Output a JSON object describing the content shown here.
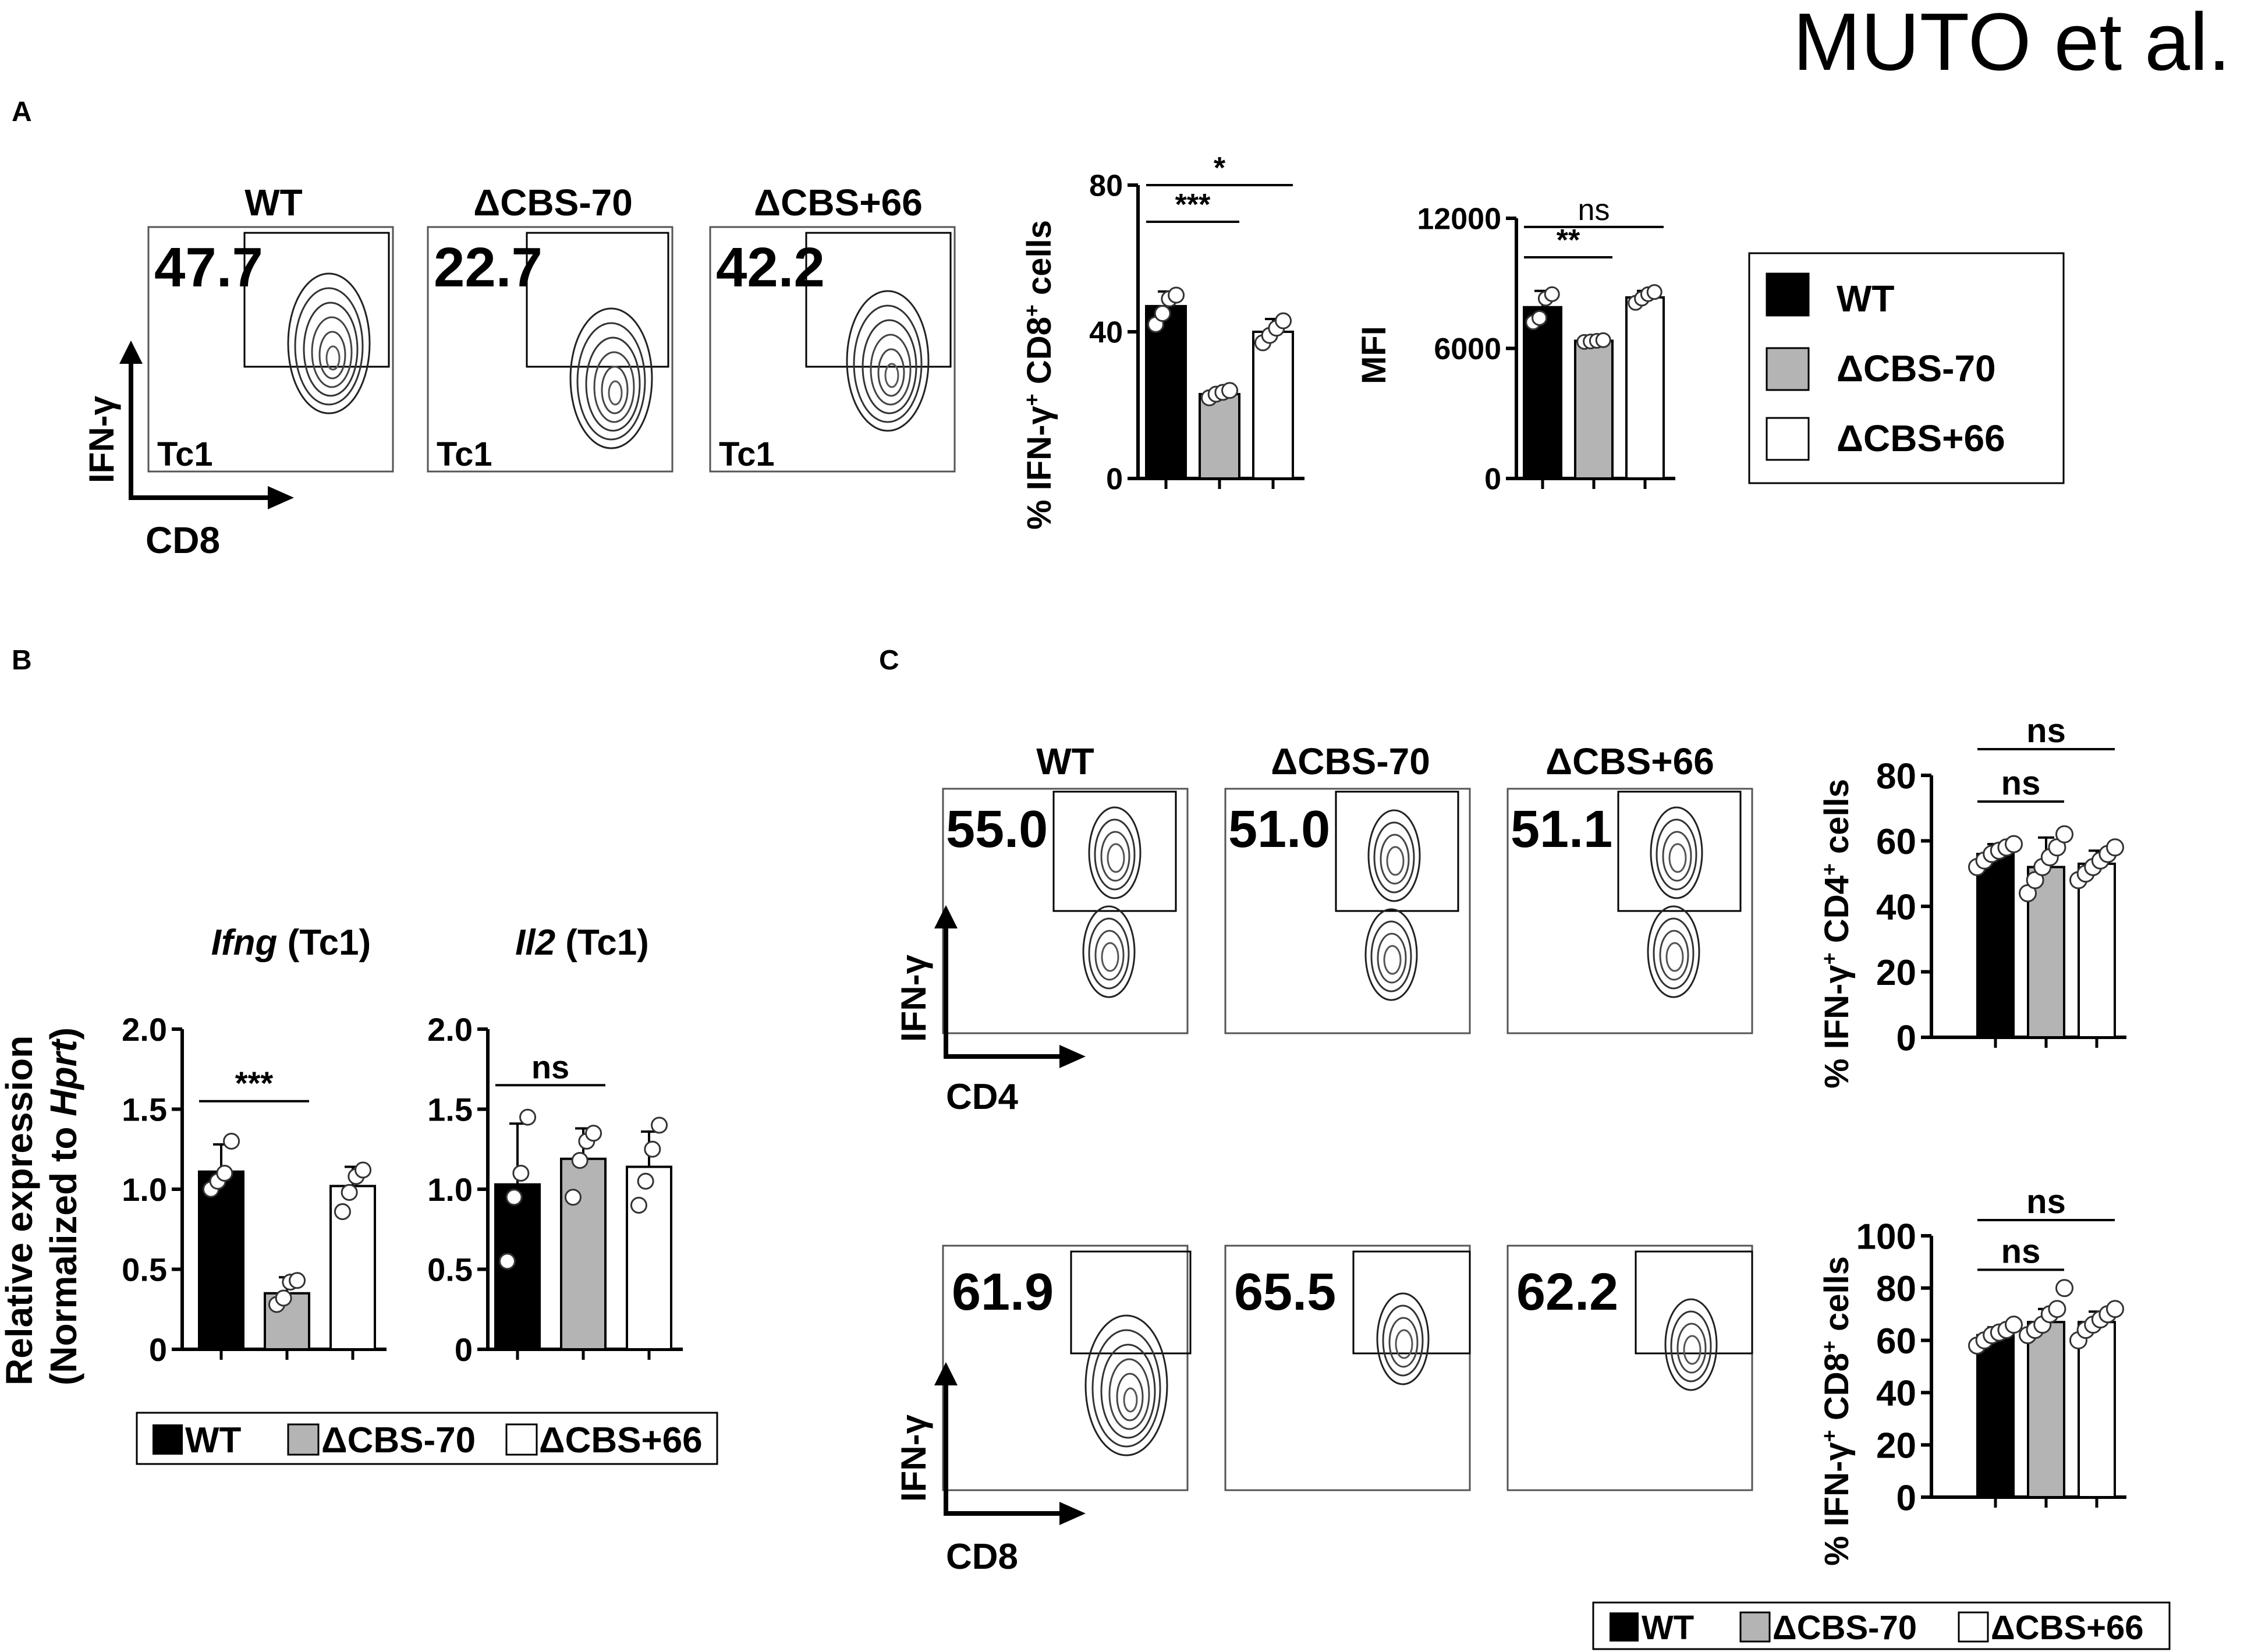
{
  "header": {
    "author_text": "MUTO et al."
  },
  "colors": {
    "wt": "#000000",
    "dcbs70": "#b4b4b4",
    "dcbs66": "#ffffff",
    "axis": "#000000"
  },
  "panel_a": {
    "label": "A",
    "facs": {
      "y_axis": "IFN-γ",
      "x_axis": "CD8",
      "plots": [
        {
          "title": "WT",
          "value": "47.7",
          "tag": "Tc1"
        },
        {
          "title": "ΔCBS-70",
          "value": "22.7",
          "tag": "Tc1"
        },
        {
          "title": "ΔCBS+66",
          "value": "42.2",
          "tag": "Tc1"
        }
      ]
    },
    "legend": [
      "WT",
      "ΔCBS-70",
      "ΔCBS+66"
    ]
  },
  "panel_b": {
    "label": "B",
    "ylabel_line1": "Relative expression",
    "ylabel_line2_prefix": "(Normalized to ",
    "ylabel_line2_italic": "Hprt",
    "ylabel_line2_suffix": ")",
    "legend": [
      "WT",
      "ΔCBS-70",
      "ΔCBS+66"
    ]
  },
  "panel_c": {
    "label": "C",
    "row1": {
      "y_axis": "IFN-γ",
      "x_axis": "CD4",
      "plots": [
        {
          "title": "WT",
          "value": "55.0"
        },
        {
          "title": "ΔCBS-70",
          "value": "51.0"
        },
        {
          "title": "ΔCBS+66",
          "value": "51.1"
        }
      ]
    },
    "row2": {
      "y_axis": "IFN-γ",
      "x_axis": "CD8",
      "plots": [
        {
          "value": "61.9"
        },
        {
          "value": "65.5"
        },
        {
          "value": "62.2"
        }
      ]
    },
    "legend": [
      "WT",
      "ΔCBS-70",
      "ΔCBS+66"
    ]
  },
  "chart_data": [
    {
      "id": "a_pct",
      "type": "bar",
      "ylabel_html": [
        "% IFN-γ",
        "+",
        " CD8",
        "+",
        " cells"
      ],
      "ylim": [
        0,
        80
      ],
      "yticks": [
        0,
        40,
        80
      ],
      "categories": [
        "WT",
        "ΔCBS-70",
        "ΔCBS+66"
      ],
      "values": [
        47,
        23,
        40
      ],
      "errors": [
        4,
        1.5,
        3.5
      ],
      "points": [
        [
          42,
          45,
          49,
          50
        ],
        [
          22,
          23,
          23.5,
          24
        ],
        [
          37,
          39,
          41,
          43
        ]
      ],
      "sig": [
        {
          "from": 0,
          "to": 1,
          "text": "***",
          "y": 70,
          "big": true
        },
        {
          "from": 0,
          "to": 2,
          "text": "*",
          "y": 80,
          "big": true
        }
      ]
    },
    {
      "id": "a_mfi",
      "type": "bar",
      "ylabel_html": [
        "MFI"
      ],
      "ylim": [
        0,
        12000
      ],
      "yticks": [
        0,
        6000,
        12000
      ],
      "categories": [
        "WT",
        "ΔCBS-70",
        "ΔCBS+66"
      ],
      "values": [
        7900,
        6350,
        8350
      ],
      "errors": [
        750,
        100,
        300
      ],
      "points": [
        [
          7200,
          7400,
          8300,
          8500
        ],
        [
          6300,
          6320,
          6350,
          6380
        ],
        [
          8100,
          8300,
          8500,
          8600
        ]
      ],
      "sig": [
        {
          "from": 0,
          "to": 1,
          "text": "**",
          "y": 10200,
          "big": true
        },
        {
          "from": 0,
          "to": 2,
          "text": "ns",
          "y": 11600,
          "big": false
        }
      ]
    },
    {
      "id": "b_ifng",
      "type": "bar",
      "title_italic": "Ifng",
      "title_rest": " (Tc1)",
      "ylim": [
        0,
        2.0
      ],
      "yticks": [
        0,
        0.5,
        1.0,
        1.5,
        2.0
      ],
      "ytick_labels": [
        "0",
        "0.5",
        "1.0",
        "1.5",
        "2.0"
      ],
      "categories": [
        "WT",
        "ΔCBS-70",
        "ΔCBS+66"
      ],
      "values": [
        1.11,
        0.35,
        1.02
      ],
      "errors": [
        0.17,
        0.1,
        0.12
      ],
      "points": [
        [
          1.0,
          1.05,
          1.1,
          1.3
        ],
        [
          0.28,
          0.32,
          0.42,
          0.43
        ],
        [
          0.86,
          0.98,
          1.08,
          1.12
        ]
      ],
      "sig": [
        {
          "from": 0,
          "to": 1,
          "text": "***",
          "y": 1.55,
          "big": true
        }
      ]
    },
    {
      "id": "b_il2",
      "type": "bar",
      "title_italic": "Il2",
      "title_rest": " (Tc1)",
      "ylim": [
        0,
        2.0
      ],
      "yticks": [
        0,
        0.5,
        1.0,
        1.5,
        2.0
      ],
      "ytick_labels": [
        "0",
        "0.5",
        "1.0",
        "1.5",
        "2.0"
      ],
      "categories": [
        "WT",
        "ΔCBS-70",
        "ΔCBS+66"
      ],
      "values": [
        1.03,
        1.19,
        1.14
      ],
      "errors": [
        0.38,
        0.19,
        0.22
      ],
      "points": [
        [
          0.55,
          0.95,
          1.1,
          1.45
        ],
        [
          0.95,
          1.18,
          1.3,
          1.35
        ],
        [
          0.9,
          1.05,
          1.25,
          1.4
        ]
      ],
      "sig": [
        {
          "from": 0,
          "to": 1,
          "text": "ns",
          "y": 1.65,
          "big": true
        }
      ]
    },
    {
      "id": "c_cd4",
      "type": "bar",
      "ylabel_html": [
        "% IFN-γ",
        "+",
        " CD4",
        "+",
        " cells"
      ],
      "ylim": [
        0,
        80
      ],
      "yticks": [
        0,
        20,
        40,
        60,
        80
      ],
      "categories": [
        "WT",
        "ΔCBS-70",
        "ΔCBS+66"
      ],
      "values": [
        56,
        52,
        53
      ],
      "errors": [
        3,
        9,
        4
      ],
      "points": [
        [
          52,
          54,
          56,
          57,
          58,
          59
        ],
        [
          44,
          48,
          52,
          55,
          58,
          62
        ],
        [
          48,
          50,
          52,
          54,
          56,
          58
        ]
      ],
      "sig": [
        {
          "from": 0,
          "to": 1,
          "text": "ns",
          "y": 72,
          "big": true
        },
        {
          "from": 0,
          "to": 2,
          "text": "ns",
          "y": 88,
          "big": true
        }
      ]
    },
    {
      "id": "c_cd8",
      "type": "bar",
      "ylabel_html": [
        "% IFN-γ",
        "+",
        " CD8",
        "+",
        " cells"
      ],
      "ylim": [
        0,
        100
      ],
      "yticks": [
        0,
        20,
        40,
        60,
        80,
        100
      ],
      "categories": [
        "WT",
        "ΔCBS-70",
        "ΔCBS+66"
      ],
      "values": [
        62,
        67,
        67
      ],
      "errors": [
        3,
        5,
        4
      ],
      "points": [
        [
          58,
          60,
          62,
          63,
          64,
          66
        ],
        [
          62,
          64,
          66,
          70,
          72,
          80
        ],
        [
          60,
          64,
          66,
          68,
          70,
          72
        ]
      ],
      "sig": [
        {
          "from": 0,
          "to": 1,
          "text": "ns",
          "y": 87,
          "big": true
        },
        {
          "from": 0,
          "to": 2,
          "text": "ns",
          "y": 106,
          "big": true
        }
      ]
    }
  ]
}
